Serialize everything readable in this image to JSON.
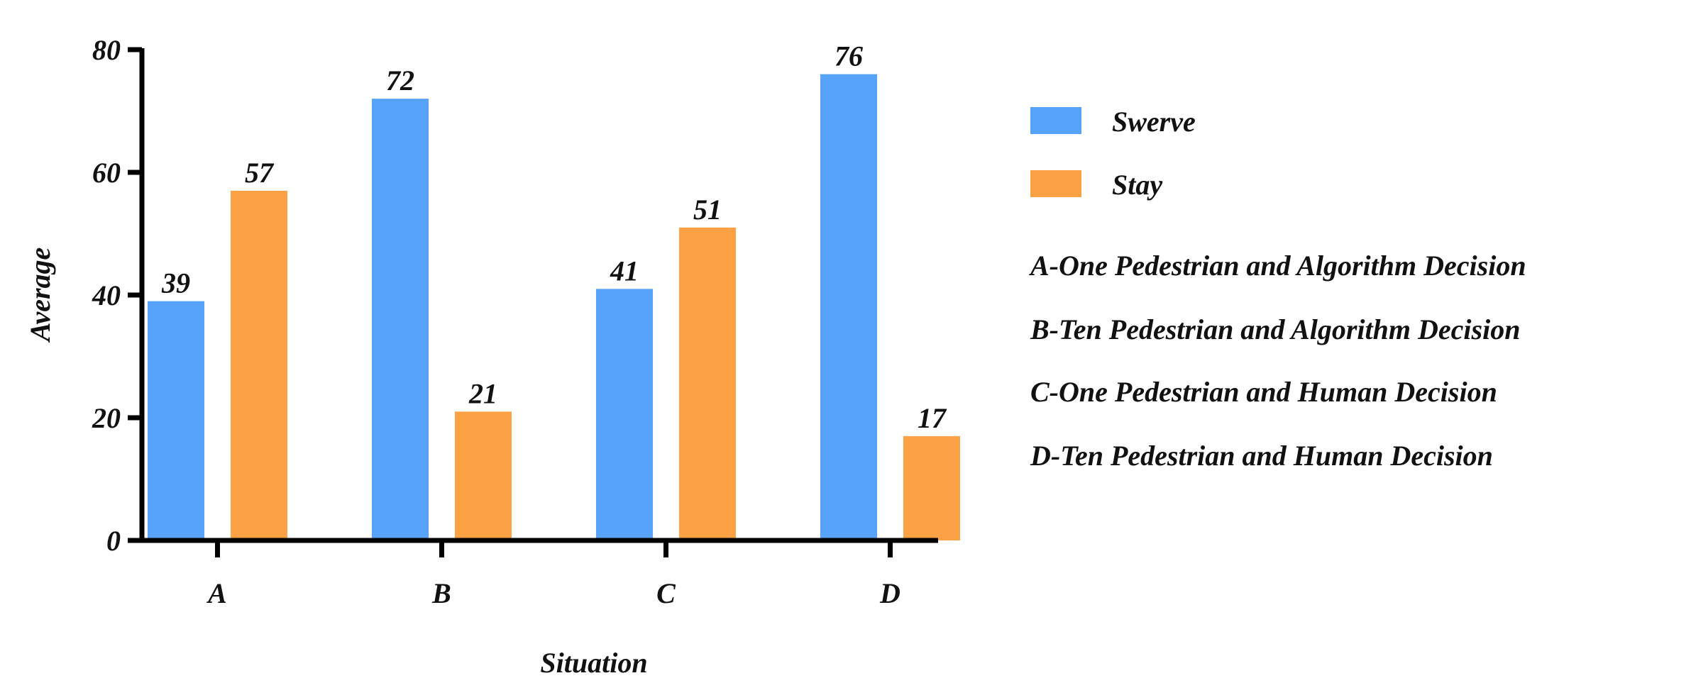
{
  "chart_data": {
    "type": "bar",
    "title": "",
    "xlabel": "Situation",
    "ylabel": "Average",
    "categories": [
      "A",
      "B",
      "C",
      "D"
    ],
    "series": [
      {
        "name": "Swerve",
        "color": "#57a2fa",
        "values": [
          39,
          72,
          41,
          76
        ]
      },
      {
        "name": "Stay",
        "color": "#fca244",
        "values": [
          57,
          21,
          51,
          17
        ]
      }
    ],
    "ylim": [
      0,
      80
    ],
    "yticks": [
      0,
      20,
      40,
      60,
      80
    ],
    "grid": false,
    "legend_position": "right",
    "category_notes": [
      "A-One Pedestrian and Algorithm Decision",
      "B-Ten Pedestrian and Algorithm Decision",
      "C-One Pedestrian and Human Decision",
      "D-Ten Pedestrian and Human Decision"
    ]
  }
}
